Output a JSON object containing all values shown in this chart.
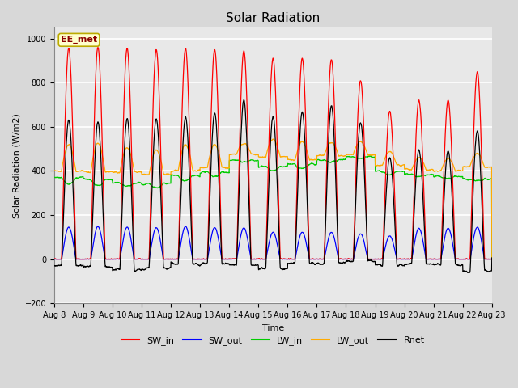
{
  "title": "Solar Radiation",
  "ylabel": "Solar Radiation (W/m2)",
  "xlabel": "Time",
  "ylim": [
    -200,
    1050
  ],
  "annotation": "EE_met",
  "plot_bg_color": "#e8e8e8",
  "fig_bg_color": "#d8d8d8",
  "grid_color": "white",
  "series": {
    "SW_in": {
      "color": "#ff0000",
      "label": "SW_in"
    },
    "SW_out": {
      "color": "#0000ff",
      "label": "SW_out"
    },
    "LW_in": {
      "color": "#00cc00",
      "label": "LW_in"
    },
    "LW_out": {
      "color": "#ffaa00",
      "label": "LW_out"
    },
    "Rnet": {
      "color": "#000000",
      "label": "Rnet"
    }
  },
  "x_tick_labels": [
    "Aug 8",
    "Aug 9",
    "Aug 10",
    "Aug 11",
    "Aug 12",
    "Aug 13",
    "Aug 14",
    "Aug 15",
    "Aug 16",
    "Aug 17",
    "Aug 18",
    "Aug 19",
    "Aug 20",
    "Aug 21",
    "Aug 22",
    "Aug 23"
  ],
  "n_days": 15,
  "pts_per_day": 144,
  "sw_in_peaks": [
    955,
    960,
    955,
    950,
    955,
    950,
    945,
    910,
    910,
    905,
    810,
    670,
    720,
    720,
    850
  ],
  "sw_out_peaks": [
    145,
    148,
    145,
    143,
    148,
    143,
    142,
    122,
    122,
    122,
    115,
    105,
    140,
    140,
    145
  ],
  "lw_in_base": [
    370,
    360,
    345,
    340,
    380,
    395,
    450,
    420,
    430,
    450,
    465,
    400,
    385,
    375,
    365
  ],
  "lw_in_dip": [
    30,
    25,
    15,
    15,
    25,
    20,
    10,
    20,
    20,
    10,
    10,
    15,
    12,
    10,
    10
  ],
  "lw_out_base": [
    400,
    395,
    395,
    385,
    400,
    415,
    475,
    465,
    450,
    470,
    475,
    425,
    405,
    400,
    420
  ],
  "lw_out_peak": [
    120,
    130,
    110,
    110,
    120,
    105,
    50,
    80,
    80,
    60,
    60,
    60,
    55,
    55,
    60
  ],
  "night_rnet": [
    -50,
    -55,
    -60,
    -65,
    -55,
    -60,
    -55,
    -50,
    -55,
    -60,
    -85,
    -85,
    -85,
    -85,
    -60
  ]
}
